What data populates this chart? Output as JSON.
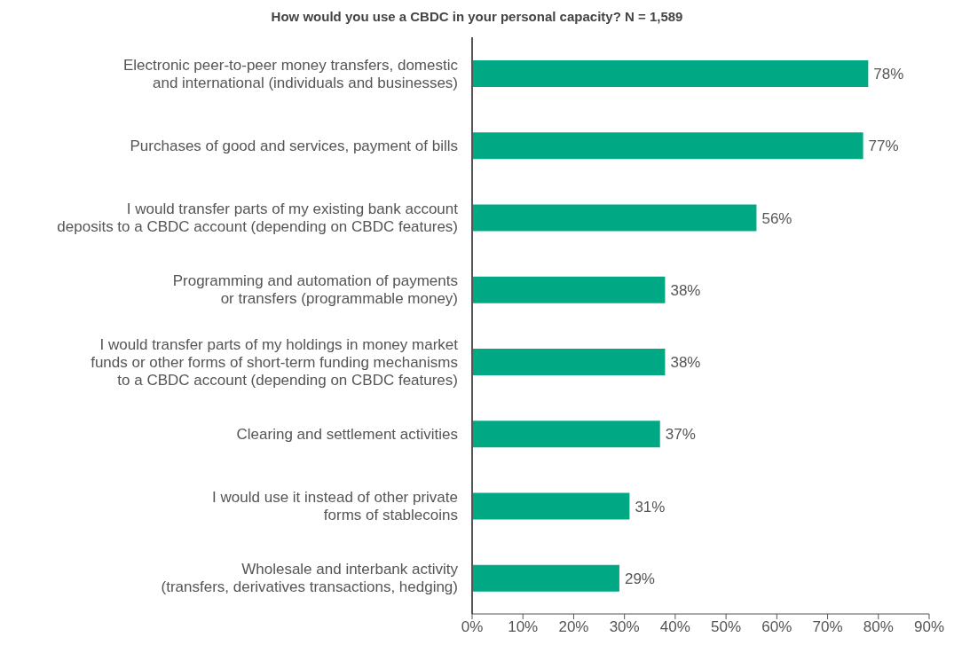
{
  "chart_data": {
    "type": "bar",
    "orientation": "horizontal",
    "title": "How would you use a CBDC in your personal capacity? N = 1,589",
    "categories": [
      "Electronic peer-to-peer money transfers, domestic\nand international (individuals and businesses)",
      "Purchases of good and services, payment of bills",
      "I would transfer parts of my existing bank account\ndeposits to a CBDC account (depending on CBDC features)",
      "Programming and automation of payments\nor transfers (programmable money)",
      "I would transfer parts of my holdings in money market\nfunds or other forms of short-term funding mechanisms\nto a CBDC account (depending on CBDC features)",
      "Clearing and settlement activities",
      "I would use it instead of other private\nforms of stablecoins",
      "Wholesale and interbank activity\n(transfers, derivatives transactions, hedging)"
    ],
    "values": [
      78,
      77,
      56,
      38,
      38,
      37,
      31,
      29
    ],
    "value_labels": [
      "78%",
      "77%",
      "56%",
      "38%",
      "38%",
      "37%",
      "31%",
      "29%"
    ],
    "color": "#00a884",
    "xlim": [
      0,
      90
    ],
    "xticks": [
      {
        "value": 0,
        "label": "0%"
      },
      {
        "value": 10,
        "label": "10%"
      },
      {
        "value": 20,
        "label": "20%"
      },
      {
        "value": 30,
        "label": "30%"
      },
      {
        "value": 40,
        "label": "40%"
      },
      {
        "value": 50,
        "label": "50%"
      },
      {
        "value": 60,
        "label": "60%"
      },
      {
        "value": 70,
        "label": "70%"
      },
      {
        "value": 80,
        "label": "80%"
      },
      {
        "value": 90,
        "label": "90%"
      }
    ],
    "grid": false,
    "legend": false
  }
}
